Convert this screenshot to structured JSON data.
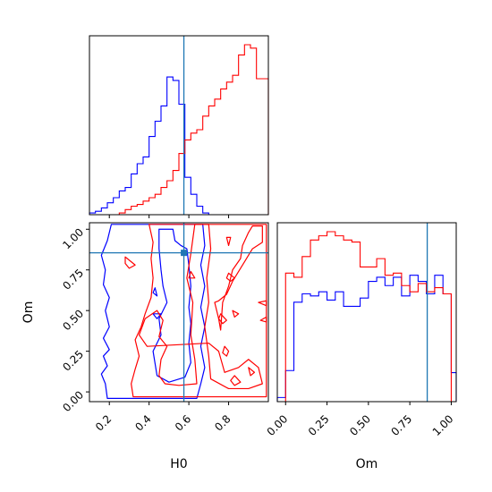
{
  "chart_data": [
    {
      "panel": "H0-marginal",
      "type": "histogram",
      "xlim": [
        0.1,
        1.0
      ],
      "truth": 0.575,
      "series": [
        {
          "color": "#0000ff",
          "bin_edges": [
            0.1,
            0.13,
            0.16,
            0.19,
            0.22,
            0.25,
            0.28,
            0.31,
            0.34,
            0.37,
            0.4,
            0.43,
            0.46,
            0.49,
            0.52,
            0.55,
            0.58,
            0.61,
            0.64,
            0.67,
            0.7
          ],
          "counts": [
            0.01,
            0.02,
            0.04,
            0.07,
            0.1,
            0.14,
            0.16,
            0.24,
            0.3,
            0.34,
            0.46,
            0.55,
            0.64,
            0.81,
            0.79,
            0.65,
            0.22,
            0.12,
            0.05,
            0.01
          ]
        },
        {
          "color": "#ff0000",
          "bin_edges": [
            0.25,
            0.28,
            0.31,
            0.34,
            0.37,
            0.4,
            0.43,
            0.46,
            0.49,
            0.52,
            0.55,
            0.58,
            0.61,
            0.64,
            0.67,
            0.7,
            0.73,
            0.76,
            0.79,
            0.82,
            0.85,
            0.88,
            0.91,
            0.94,
            0.97,
            1.0
          ],
          "counts": [
            0.01,
            0.03,
            0.05,
            0.06,
            0.08,
            0.1,
            0.12,
            0.16,
            0.2,
            0.26,
            0.36,
            0.44,
            0.48,
            0.5,
            0.58,
            0.64,
            0.68,
            0.74,
            0.78,
            0.82,
            0.94,
            1.0,
            0.98,
            0.8,
            0.8
          ]
        }
      ]
    },
    {
      "panel": "H0-Om-joint",
      "type": "contour",
      "xlabel": "H0",
      "ylabel": "Om",
      "xlim": [
        0.1,
        1.0
      ],
      "ylim": [
        -0.06,
        1.04
      ],
      "xticks": [
        0.2,
        0.4,
        0.6,
        0.8
      ],
      "xtick_labels": [
        "0.2",
        "0.4",
        "0.6",
        "0.8"
      ],
      "yticks": [
        0.0,
        0.25,
        0.5,
        0.75,
        1.0
      ],
      "ytick_labels": [
        "0.00",
        "0.25",
        "0.50",
        "0.75",
        "1.00"
      ],
      "truth": {
        "x": 0.575,
        "y": 0.855
      },
      "series": [
        {
          "color": "#0000ff",
          "contours": [
            [
              [
                0.19,
                -0.04
              ],
              [
                0.18,
                0.05
              ],
              [
                0.16,
                0.11
              ],
              [
                0.19,
                0.16
              ],
              [
                0.17,
                0.22
              ],
              [
                0.2,
                0.26
              ],
              [
                0.17,
                0.33
              ],
              [
                0.2,
                0.4
              ],
              [
                0.18,
                0.5
              ],
              [
                0.2,
                0.58
              ],
              [
                0.17,
                0.66
              ],
              [
                0.18,
                0.75
              ],
              [
                0.16,
                0.84
              ],
              [
                0.19,
                0.93
              ],
              [
                0.21,
                1.03
              ],
              [
                0.67,
                1.03
              ],
              [
                0.68,
                0.9
              ],
              [
                0.66,
                0.78
              ],
              [
                0.68,
                0.65
              ],
              [
                0.66,
                0.52
              ],
              [
                0.68,
                0.4
              ],
              [
                0.66,
                0.28
              ],
              [
                0.68,
                0.15
              ],
              [
                0.66,
                0.05
              ],
              [
                0.64,
                -0.04
              ]
            ],
            [
              [
                0.44,
                0.1
              ],
              [
                0.42,
                0.25
              ],
              [
                0.46,
                0.35
              ],
              [
                0.45,
                0.45
              ],
              [
                0.49,
                0.55
              ],
              [
                0.47,
                0.65
              ],
              [
                0.46,
                0.75
              ],
              [
                0.45,
                0.88
              ],
              [
                0.45,
                1.0
              ],
              [
                0.52,
                1.0
              ],
              [
                0.53,
                0.93
              ],
              [
                0.56,
                0.9
              ],
              [
                0.59,
                0.88
              ],
              [
                0.6,
                0.78
              ],
              [
                0.61,
                0.65
              ],
              [
                0.6,
                0.52
              ],
              [
                0.61,
                0.42
              ],
              [
                0.6,
                0.3
              ],
              [
                0.61,
                0.18
              ],
              [
                0.58,
                0.09
              ],
              [
                0.5,
                0.06
              ]
            ],
            [
              [
                0.43,
                0.64
              ],
              [
                0.42,
                0.61
              ],
              [
                0.44,
                0.59
              ]
            ],
            [
              [
                0.42,
                0.48
              ],
              [
                0.44,
                0.45
              ],
              [
                0.46,
                0.48
              ]
            ]
          ]
        },
        {
          "color": "#ff0000",
          "contours": [
            [
              [
                0.32,
                -0.03
              ],
              [
                0.31,
                0.05
              ],
              [
                0.33,
                0.14
              ],
              [
                0.35,
                0.22
              ],
              [
                0.33,
                0.32
              ],
              [
                0.36,
                0.4
              ],
              [
                0.38,
                0.48
              ],
              [
                0.41,
                0.58
              ],
              [
                0.42,
                0.7
              ],
              [
                0.41,
                0.82
              ],
              [
                0.42,
                0.92
              ],
              [
                0.4,
                1.03
              ],
              [
                0.99,
                1.03
              ],
              [
                0.99,
                -0.03
              ]
            ],
            [
              [
                0.39,
                0.28
              ],
              [
                0.35,
                0.35
              ],
              [
                0.38,
                0.45
              ],
              [
                0.44,
                0.5
              ],
              [
                0.47,
                0.44
              ],
              [
                0.45,
                0.34
              ],
              [
                0.49,
                0.28
              ],
              [
                0.46,
                0.2
              ],
              [
                0.45,
                0.1
              ],
              [
                0.48,
                0.05
              ],
              [
                0.55,
                0.04
              ],
              [
                0.64,
                0.05
              ],
              [
                0.63,
                0.2
              ],
              [
                0.61,
                0.35
              ],
              [
                0.62,
                0.55
              ],
              [
                0.59,
                0.7
              ],
              [
                0.61,
                0.85
              ],
              [
                0.63,
                1.03
              ],
              [
                0.7,
                1.03
              ],
              [
                0.71,
                0.88
              ],
              [
                0.69,
                0.7
              ],
              [
                0.7,
                0.55
              ],
              [
                0.68,
                0.4
              ],
              [
                0.7,
                0.22
              ],
              [
                0.71,
                0.08
              ],
              [
                0.8,
                0.02
              ],
              [
                0.9,
                0.02
              ],
              [
                0.97,
                0.05
              ],
              [
                0.95,
                0.15
              ],
              [
                0.9,
                0.2
              ],
              [
                0.85,
                0.15
              ],
              [
                0.78,
                0.12
              ],
              [
                0.75,
                0.25
              ],
              [
                0.7,
                0.3
              ]
            ],
            [
              [
                0.73,
                0.55
              ],
              [
                0.75,
                0.45
              ],
              [
                0.76,
                0.38
              ],
              [
                0.77,
                0.55
              ],
              [
                0.8,
                0.65
              ],
              [
                0.82,
                0.75
              ],
              [
                0.86,
                0.82
              ],
              [
                0.87,
                0.9
              ],
              [
                0.9,
                0.98
              ],
              [
                0.92,
                1.02
              ],
              [
                0.97,
                1.02
              ],
              [
                0.97,
                0.92
              ],
              [
                0.92,
                0.88
              ],
              [
                0.88,
                0.8
              ],
              [
                0.82,
                0.68
              ],
              [
                0.79,
                0.6
              ],
              [
                0.75,
                0.56
              ]
            ],
            [
              [
                0.28,
                0.83
              ],
              [
                0.31,
                0.8
              ],
              [
                0.33,
                0.78
              ],
              [
                0.3,
                0.76
              ],
              [
                0.28,
                0.79
              ]
            ],
            [
              [
                0.61,
                0.74
              ],
              [
                0.63,
                0.7
              ],
              [
                0.6,
                0.7
              ]
            ],
            [
              [
                0.8,
                0.73
              ],
              [
                0.83,
                0.7
              ],
              [
                0.81,
                0.68
              ],
              [
                0.79,
                0.7
              ]
            ],
            [
              [
                0.79,
                0.95
              ],
              [
                0.8,
                0.9
              ],
              [
                0.81,
                0.95
              ]
            ],
            [
              [
                0.76,
                0.48
              ],
              [
                0.79,
                0.44
              ],
              [
                0.77,
                0.42
              ],
              [
                0.75,
                0.45
              ]
            ],
            [
              [
                0.82,
                0.5
              ],
              [
                0.85,
                0.48
              ],
              [
                0.83,
                0.46
              ]
            ],
            [
              [
                0.78,
                0.28
              ],
              [
                0.8,
                0.25
              ],
              [
                0.79,
                0.22
              ],
              [
                0.77,
                0.24
              ]
            ],
            [
              [
                0.83,
                0.1
              ],
              [
                0.86,
                0.06
              ],
              [
                0.83,
                0.04
              ],
              [
                0.81,
                0.07
              ]
            ],
            [
              [
                0.9,
                0.15
              ],
              [
                0.93,
                0.12
              ],
              [
                0.91,
                0.1
              ]
            ],
            [
              [
                0.96,
                0.44
              ],
              [
                0.99,
                0.43
              ],
              [
                0.99,
                0.46
              ]
            ],
            [
              [
                0.95,
                0.55
              ],
              [
                0.99,
                0.53
              ],
              [
                0.99,
                0.56
              ]
            ]
          ]
        }
      ]
    },
    {
      "panel": "Om-marginal",
      "type": "histogram",
      "xlabel": "Om",
      "xlim": [
        -0.05,
        1.03
      ],
      "xticks": [
        0.0,
        0.25,
        0.5,
        0.75,
        1.0
      ],
      "xtick_labels": [
        "0.00",
        "0.25",
        "0.50",
        "0.75",
        "1.00"
      ],
      "truth": 0.855,
      "series": [
        {
          "color": "#0000ff",
          "bin_edges": [
            -0.05,
            0.0,
            0.05,
            0.1,
            0.15,
            0.2,
            0.25,
            0.3,
            0.35,
            0.4,
            0.45,
            0.5,
            0.55,
            0.6,
            0.65,
            0.7,
            0.75,
            0.8,
            0.85,
            0.9,
            0.95,
            1.0,
            1.03
          ],
          "counts": [
            0.02,
            0.15,
            0.48,
            0.52,
            0.51,
            0.53,
            0.49,
            0.53,
            0.46,
            0.46,
            0.5,
            0.58,
            0.6,
            0.56,
            0.6,
            0.51,
            0.61,
            0.58,
            0.52,
            0.61,
            0.52,
            0.14
          ]
        },
        {
          "color": "#ff0000",
          "bin_edges": [
            0.0,
            0.05,
            0.1,
            0.15,
            0.2,
            0.25,
            0.3,
            0.35,
            0.4,
            0.45,
            0.5,
            0.55,
            0.6,
            0.65,
            0.7,
            0.75,
            0.8,
            0.85,
            0.9,
            0.95,
            1.0
          ],
          "counts": [
            0.62,
            0.6,
            0.7,
            0.78,
            0.8,
            0.82,
            0.8,
            0.78,
            0.77,
            0.65,
            0.65,
            0.69,
            0.61,
            0.62,
            0.56,
            0.53,
            0.57,
            0.53,
            0.55,
            0.52
          ]
        }
      ]
    }
  ]
}
